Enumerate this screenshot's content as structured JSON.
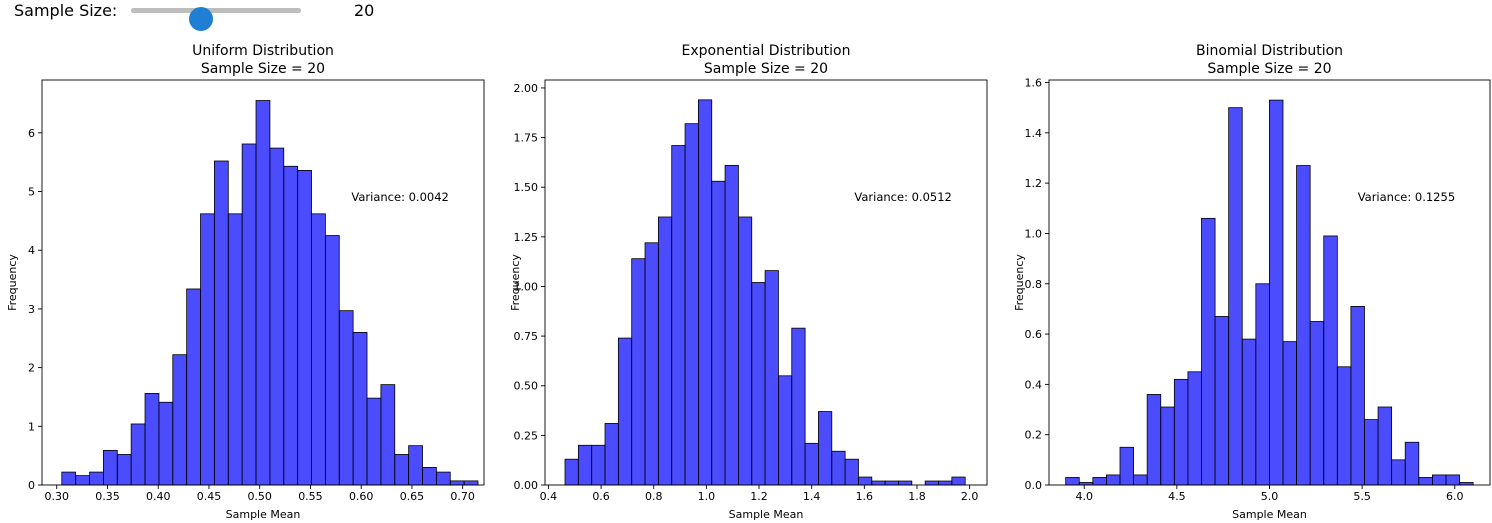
{
  "slider": {
    "label": "Sample Size:",
    "value": "20",
    "min": 1,
    "max": 50,
    "current": 20
  },
  "chart_data": [
    {
      "type": "bar",
      "title": "Uniform Distribution",
      "subtitle": "Sample Size = 20",
      "xlabel": "Sample Mean",
      "ylabel": "Frequency",
      "annotation": "Variance: 0.0042",
      "bar_color": "#0000ff",
      "bar_edge_color": "#000000",
      "xlim": [
        0.2855,
        0.721
      ],
      "ylim": [
        0,
        6.9
      ],
      "xticks": [
        0.3,
        0.35,
        0.4,
        0.45,
        0.5,
        0.55,
        0.6,
        0.65,
        0.7
      ],
      "xtick_labels": [
        "0.30",
        "0.35",
        "0.40",
        "0.45",
        "0.50",
        "0.55",
        "0.60",
        "0.65",
        "0.70"
      ],
      "yticks": [
        0,
        1,
        2,
        3,
        4,
        5,
        6
      ],
      "ytick_labels": [
        "0",
        "1",
        "2",
        "3",
        "4",
        "5",
        "6"
      ],
      "bin_start": 0.305,
      "bin_width": 0.01367,
      "values": [
        0.22,
        0.16,
        0.22,
        0.59,
        0.52,
        1.04,
        1.56,
        1.41,
        2.22,
        3.34,
        4.62,
        5.52,
        4.62,
        5.81,
        6.55,
        5.74,
        5.43,
        5.36,
        4.62,
        4.25,
        2.97,
        2.6,
        1.48,
        1.71,
        0.52,
        0.67,
        0.3,
        0.22,
        0.07,
        0.07
      ]
    },
    {
      "type": "bar",
      "title": "Exponential Distribution",
      "subtitle": "Sample Size = 20",
      "xlabel": "Sample Mean",
      "ylabel": "Frequency",
      "annotation": "Variance: 0.0512",
      "bar_color": "#0000ff",
      "bar_edge_color": "#000000",
      "xlim": [
        0.387,
        2.066
      ],
      "ylim": [
        0,
        2.04
      ],
      "xticks": [
        0.4,
        0.6,
        0.8,
        1.0,
        1.2,
        1.4,
        1.6,
        1.8,
        2.0
      ],
      "xtick_labels": [
        "0.4",
        "0.6",
        "0.8",
        "1.0",
        "1.2",
        "1.4",
        "1.6",
        "1.8",
        "2.0"
      ],
      "yticks": [
        0,
        0.25,
        0.5,
        0.75,
        1.0,
        1.25,
        1.5,
        1.75,
        2.0
      ],
      "ytick_labels": [
        "0.00",
        "0.25",
        "0.50",
        "0.75",
        "1.00",
        "1.25",
        "1.50",
        "1.75",
        "2.00"
      ],
      "bin_start": 0.463,
      "bin_width": 0.05067,
      "values": [
        0.13,
        0.2,
        0.2,
        0.31,
        0.74,
        1.14,
        1.22,
        1.35,
        1.71,
        1.82,
        1.94,
        1.53,
        1.61,
        1.35,
        1.02,
        1.08,
        0.55,
        0.79,
        0.21,
        0.37,
        0.17,
        0.13,
        0.04,
        0.02,
        0.02,
        0.02,
        0.0,
        0.02,
        0.02,
        0.04
      ]
    },
    {
      "type": "bar",
      "title": "Binomial Distribution",
      "subtitle": "Sample Size = 20",
      "xlabel": "Sample Mean",
      "ylabel": "Frequency",
      "annotation": "Variance: 0.1255",
      "bar_color": "#0000ff",
      "bar_edge_color": "#000000",
      "xlim": [
        3.81,
        6.19
      ],
      "ylim": [
        0,
        1.61
      ],
      "xticks": [
        4.0,
        4.5,
        5.0,
        5.5,
        6.0
      ],
      "xtick_labels": [
        "4.0",
        "4.5",
        "5.0",
        "5.5",
        "6.0"
      ],
      "yticks": [
        0,
        0.2,
        0.4,
        0.6,
        0.8,
        1.0,
        1.2,
        1.4,
        1.6
      ],
      "ytick_labels": [
        "0.0",
        "0.2",
        "0.4",
        "0.6",
        "0.8",
        "1.0",
        "1.2",
        "1.4",
        "1.6"
      ],
      "bin_start": 3.9,
      "bin_width": 0.0733,
      "values": [
        0.03,
        0.01,
        0.03,
        0.04,
        0.15,
        0.04,
        0.36,
        0.31,
        0.42,
        0.45,
        1.06,
        0.67,
        1.5,
        0.58,
        0.8,
        1.53,
        0.57,
        1.27,
        0.65,
        0.99,
        0.47,
        0.71,
        0.26,
        0.31,
        0.1,
        0.17,
        0.03,
        0.04,
        0.04,
        0.01
      ]
    }
  ]
}
